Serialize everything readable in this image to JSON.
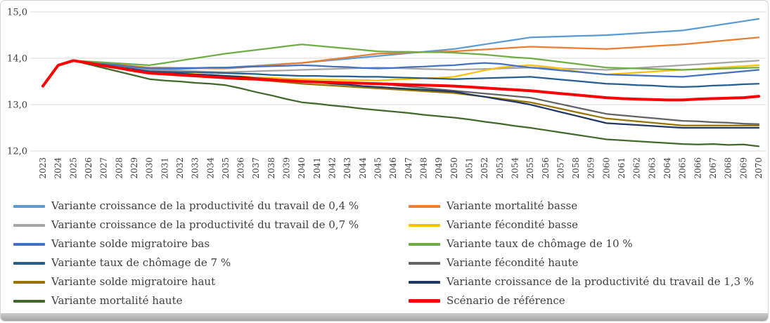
{
  "chart_data": {
    "type": "line",
    "title": "",
    "xlabel": "",
    "ylabel": "",
    "grid": true,
    "legend_position": "bottom",
    "background": "#ffffff",
    "gridline_color": "#d9d9d9",
    "axis_text_color": "#404040",
    "ylim": [
      12,
      15
    ],
    "yticks": [
      12,
      13,
      14,
      15
    ],
    "ytick_labels": [
      "12,0",
      "13,0",
      "14,0",
      "15,0"
    ],
    "x": [
      2023,
      2024,
      2025,
      2026,
      2027,
      2028,
      2029,
      2030,
      2031,
      2032,
      2033,
      2034,
      2035,
      2036,
      2037,
      2038,
      2039,
      2040,
      2041,
      2042,
      2043,
      2044,
      2045,
      2046,
      2047,
      2048,
      2049,
      2050,
      2051,
      2052,
      2053,
      2054,
      2055,
      2056,
      2057,
      2058,
      2059,
      2060,
      2061,
      2062,
      2063,
      2064,
      2065,
      2066,
      2067,
      2068,
      2069,
      2070
    ],
    "series": [
      {
        "id": "productivite-04",
        "name": "Variante croissance de la productivité du travail de 0,4 %",
        "color": "#5B9BD5",
        "values": [
          13.4,
          13.85,
          13.95,
          13.91,
          13.87,
          13.83,
          13.79,
          13.75,
          13.76,
          13.77,
          13.78,
          13.79,
          13.8,
          13.82,
          13.84,
          13.86,
          13.88,
          13.9,
          13.93,
          13.96,
          13.99,
          14.02,
          14.05,
          14.08,
          14.11,
          14.14,
          14.17,
          14.2,
          14.25,
          14.3,
          14.35,
          14.4,
          14.45,
          14.46,
          14.47,
          14.48,
          14.49,
          14.5,
          14.52,
          14.54,
          14.56,
          14.58,
          14.6,
          14.65,
          14.7,
          14.75,
          14.8,
          14.85
        ]
      },
      {
        "id": "mortalite-basse",
        "name": "Variante mortalité basse",
        "color": "#ED7D31",
        "values": [
          13.4,
          13.85,
          13.95,
          13.92,
          13.89,
          13.86,
          13.83,
          13.8,
          13.8,
          13.79,
          13.79,
          13.78,
          13.78,
          13.8,
          13.83,
          13.85,
          13.88,
          13.9,
          13.94,
          13.98,
          14.02,
          14.06,
          14.1,
          14.11,
          14.12,
          14.13,
          14.14,
          14.15,
          14.17,
          14.19,
          14.21,
          14.23,
          14.25,
          14.24,
          14.23,
          14.22,
          14.21,
          14.2,
          14.22,
          14.24,
          14.26,
          14.28,
          14.3,
          14.33,
          14.36,
          14.39,
          14.42,
          14.45
        ]
      },
      {
        "id": "productivite-07",
        "name": "Variante croissance de la productivité du travail de 0,7 %",
        "color": "#A5A5A5",
        "values": [
          13.4,
          13.85,
          13.95,
          13.91,
          13.87,
          13.83,
          13.79,
          13.75,
          13.74,
          13.73,
          13.72,
          13.71,
          13.7,
          13.71,
          13.72,
          13.73,
          13.74,
          13.75,
          13.76,
          13.77,
          13.78,
          13.79,
          13.8,
          13.79,
          13.78,
          13.77,
          13.76,
          13.75,
          13.76,
          13.77,
          13.78,
          13.79,
          13.8,
          13.79,
          13.78,
          13.77,
          13.76,
          13.75,
          13.77,
          13.79,
          13.81,
          13.83,
          13.85,
          13.87,
          13.89,
          13.91,
          13.93,
          13.95
        ]
      },
      {
        "id": "fecondite-basse",
        "name": "Variante fécondité basse",
        "color": "#FFC000",
        "values": [
          13.4,
          13.85,
          13.95,
          13.9,
          13.86,
          13.81,
          13.77,
          13.72,
          13.7,
          13.68,
          13.66,
          13.64,
          13.62,
          13.61,
          13.59,
          13.58,
          13.56,
          13.55,
          13.54,
          13.54,
          13.53,
          13.53,
          13.52,
          13.54,
          13.55,
          13.57,
          13.58,
          13.6,
          13.67,
          13.74,
          13.8,
          13.83,
          13.85,
          13.82,
          13.78,
          13.72,
          13.68,
          13.65,
          13.67,
          13.69,
          13.71,
          13.73,
          13.75,
          13.77,
          13.79,
          13.81,
          13.83,
          13.85
        ]
      },
      {
        "id": "migratoire-bas",
        "name": "Variante solde migratoire bas",
        "color": "#4472C4",
        "values": [
          13.4,
          13.85,
          13.95,
          13.92,
          13.88,
          13.85,
          13.81,
          13.78,
          13.78,
          13.79,
          13.79,
          13.8,
          13.8,
          13.81,
          13.82,
          13.83,
          13.84,
          13.85,
          13.84,
          13.82,
          13.81,
          13.79,
          13.78,
          13.79,
          13.81,
          13.82,
          13.84,
          13.85,
          13.88,
          13.9,
          13.88,
          13.84,
          13.8,
          13.77,
          13.74,
          13.71,
          13.68,
          13.65,
          13.64,
          13.63,
          13.62,
          13.61,
          13.6,
          13.63,
          13.66,
          13.69,
          13.72,
          13.75
        ]
      },
      {
        "id": "chomage-10",
        "name": "Variante taux de chômage de 10 %",
        "color": "#70AD47",
        "values": [
          13.4,
          13.85,
          13.95,
          13.93,
          13.91,
          13.89,
          13.87,
          13.85,
          13.9,
          13.95,
          14.0,
          14.05,
          14.1,
          14.14,
          14.18,
          14.22,
          14.26,
          14.3,
          14.27,
          14.24,
          14.21,
          14.18,
          14.15,
          14.14,
          14.14,
          14.13,
          14.13,
          14.12,
          14.1,
          14.08,
          14.05,
          14.02,
          14.0,
          13.96,
          13.92,
          13.88,
          13.84,
          13.8,
          13.79,
          13.78,
          13.77,
          13.76,
          13.75,
          13.76,
          13.77,
          13.78,
          13.79,
          13.8
        ]
      },
      {
        "id": "chomage-7",
        "name": "Variante taux de chômage de 7 %",
        "color": "#255E91",
        "values": [
          13.4,
          13.85,
          13.95,
          13.9,
          13.86,
          13.81,
          13.77,
          13.72,
          13.71,
          13.7,
          13.7,
          13.69,
          13.68,
          13.67,
          13.66,
          13.64,
          13.63,
          13.62,
          13.62,
          13.61,
          13.61,
          13.6,
          13.6,
          13.59,
          13.58,
          13.57,
          13.56,
          13.55,
          13.56,
          13.57,
          13.58,
          13.59,
          13.6,
          13.57,
          13.54,
          13.51,
          13.48,
          13.45,
          13.44,
          13.42,
          13.41,
          13.39,
          13.38,
          13.39,
          13.41,
          13.42,
          13.44,
          13.45
        ]
      },
      {
        "id": "fecondite-haute",
        "name": "Variante fécondité haute",
        "color": "#636363",
        "values": [
          13.4,
          13.85,
          13.95,
          13.9,
          13.85,
          13.8,
          13.75,
          13.7,
          13.68,
          13.67,
          13.65,
          13.64,
          13.62,
          13.6,
          13.57,
          13.55,
          13.52,
          13.5,
          13.49,
          13.48,
          13.47,
          13.46,
          13.45,
          13.42,
          13.39,
          13.36,
          13.33,
          13.3,
          13.27,
          13.24,
          13.21,
          13.18,
          13.15,
          13.08,
          13.01,
          12.94,
          12.87,
          12.8,
          12.77,
          12.74,
          12.71,
          12.68,
          12.65,
          12.64,
          12.62,
          12.61,
          12.59,
          12.58
        ]
      },
      {
        "id": "migratoire-haut",
        "name": "Variante solde migratoire haut",
        "color": "#997300",
        "values": [
          13.4,
          13.85,
          13.95,
          13.9,
          13.84,
          13.79,
          13.73,
          13.68,
          13.66,
          13.65,
          13.63,
          13.62,
          13.6,
          13.57,
          13.54,
          13.51,
          13.48,
          13.45,
          13.43,
          13.41,
          13.39,
          13.37,
          13.35,
          13.33,
          13.31,
          13.29,
          13.27,
          13.25,
          13.21,
          13.17,
          13.13,
          13.09,
          13.05,
          12.98,
          12.91,
          12.84,
          12.77,
          12.7,
          12.67,
          12.64,
          12.61,
          12.58,
          12.55,
          12.55,
          12.55,
          12.55,
          12.55,
          12.55
        ]
      },
      {
        "id": "productivite-13",
        "name": "Variante croissance de la productivité du travail de 1,3 %",
        "color": "#203864",
        "values": [
          13.4,
          13.85,
          13.95,
          13.9,
          13.85,
          13.8,
          13.75,
          13.7,
          13.68,
          13.67,
          13.65,
          13.64,
          13.62,
          13.6,
          13.57,
          13.55,
          13.52,
          13.5,
          13.48,
          13.45,
          13.43,
          13.4,
          13.38,
          13.36,
          13.34,
          13.32,
          13.3,
          13.28,
          13.22,
          13.17,
          13.11,
          13.06,
          13.0,
          12.92,
          12.84,
          12.76,
          12.68,
          12.6,
          12.58,
          12.56,
          12.54,
          12.52,
          12.5,
          12.5,
          12.5,
          12.5,
          12.5,
          12.5
        ]
      },
      {
        "id": "mortalite-haute",
        "name": "Variante mortalité haute",
        "color": "#43682B",
        "values": [
          13.4,
          13.85,
          13.95,
          13.87,
          13.79,
          13.71,
          13.63,
          13.55,
          13.52,
          13.5,
          13.47,
          13.45,
          13.42,
          13.35,
          13.27,
          13.2,
          13.12,
          13.05,
          13.02,
          12.98,
          12.95,
          12.91,
          12.88,
          12.85,
          12.82,
          12.78,
          12.75,
          12.72,
          12.68,
          12.63,
          12.59,
          12.54,
          12.5,
          12.45,
          12.4,
          12.35,
          12.3,
          12.25,
          12.23,
          12.21,
          12.19,
          12.17,
          12.15,
          12.14,
          12.15,
          12.13,
          12.14,
          12.1
        ]
      },
      {
        "id": "scenario-reference",
        "name": "Scénario de référence",
        "color": "#FF0000",
        "width": 4,
        "values": [
          13.4,
          13.85,
          13.95,
          13.9,
          13.84,
          13.79,
          13.73,
          13.68,
          13.66,
          13.64,
          13.62,
          13.6,
          13.58,
          13.56,
          13.55,
          13.53,
          13.52,
          13.5,
          13.49,
          13.48,
          13.47,
          13.46,
          13.45,
          13.44,
          13.43,
          13.42,
          13.41,
          13.4,
          13.38,
          13.36,
          13.34,
          13.32,
          13.3,
          13.27,
          13.24,
          13.21,
          13.18,
          13.15,
          13.13,
          13.12,
          13.11,
          13.1,
          13.1,
          13.12,
          13.13,
          13.14,
          13.15,
          13.18
        ]
      }
    ]
  }
}
